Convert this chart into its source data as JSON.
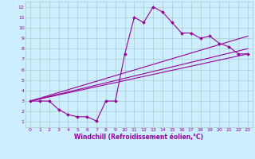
{
  "xlabel": "Windchill (Refroidissement éolien,°C)",
  "background_color": "#cceeff",
  "grid_color": "#aacccc",
  "line_color": "#990099",
  "xlim": [
    -0.5,
    23.5
  ],
  "ylim": [
    0.5,
    12.5
  ],
  "xticks": [
    0,
    1,
    2,
    3,
    4,
    5,
    6,
    7,
    8,
    9,
    10,
    11,
    12,
    13,
    14,
    15,
    16,
    17,
    18,
    19,
    20,
    21,
    22,
    23
  ],
  "yticks": [
    1,
    2,
    3,
    4,
    5,
    6,
    7,
    8,
    9,
    10,
    11,
    12
  ],
  "line1_x": [
    0,
    1,
    2,
    3,
    4,
    5,
    6,
    7,
    8,
    9,
    10,
    11,
    12,
    13,
    14,
    15,
    16,
    17,
    18,
    19,
    20,
    21,
    22,
    23
  ],
  "line1_y": [
    3.0,
    3.0,
    3.0,
    2.2,
    1.7,
    1.5,
    1.5,
    1.1,
    3.0,
    3.0,
    7.5,
    11.0,
    10.5,
    12.0,
    11.5,
    10.5,
    9.5,
    9.5,
    9.0,
    9.2,
    8.5,
    8.2,
    7.5,
    7.5
  ],
  "line2_x": [
    0,
    23
  ],
  "line2_y": [
    3.0,
    8.0
  ],
  "line3_x": [
    0,
    23
  ],
  "line3_y": [
    3.0,
    9.2
  ],
  "line4_x": [
    0,
    23
  ],
  "line4_y": [
    3.0,
    7.5
  ],
  "tick_fontsize": 4.5,
  "xlabel_fontsize": 5.5
}
